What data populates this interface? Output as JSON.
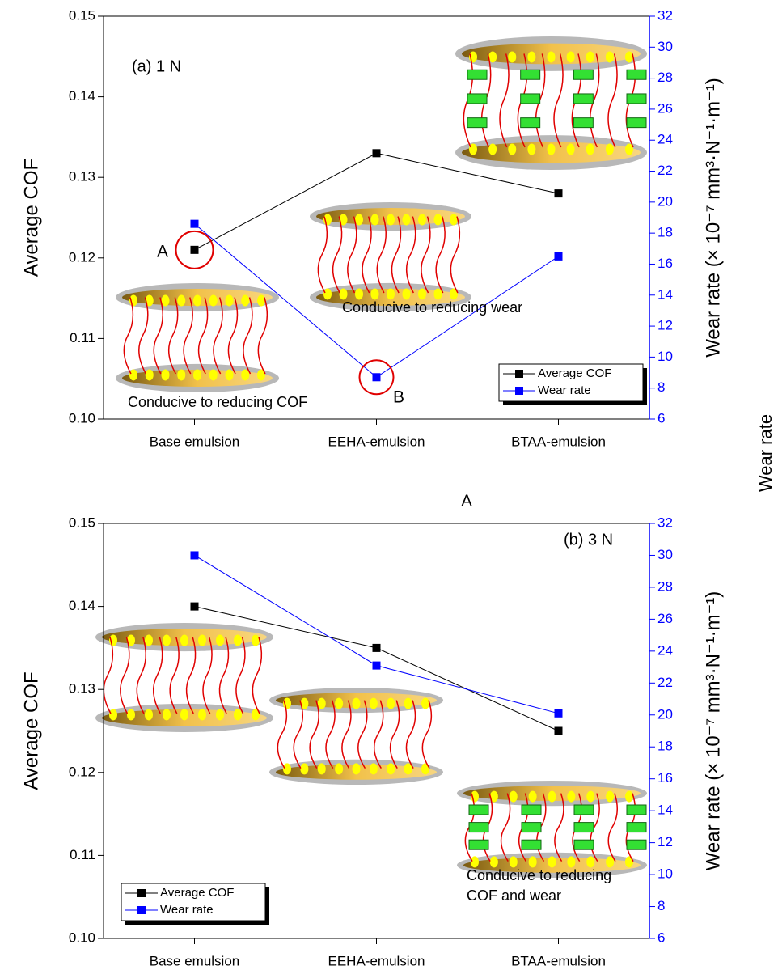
{
  "chart_data": [
    {
      "type": "line",
      "title": "(a) 1 N",
      "categories": [
        "Base emulsion",
        "EEHA-emulsion",
        "BTAA-emulsion"
      ],
      "series": [
        {
          "name": "Average COF",
          "color": "#000000",
          "values": [
            0.121,
            0.133,
            0.128
          ]
        },
        {
          "name": "Wear rate",
          "color": "#0000ff",
          "values": [
            18.6,
            8.7,
            16.5
          ],
          "axis": "y2"
        }
      ],
      "ylabel": "Average COF",
      "y2label": "Wear rate (× 10⁻⁷ mm³·N⁻¹·m⁻¹)",
      "ylim": [
        0.1,
        0.15
      ],
      "yticks": [
        {
          "value": 0.1,
          "label": "0.10"
        },
        0.11,
        0.12,
        0.13,
        0.14,
        0.15
      ],
      "y2lim": [
        6,
        32
      ],
      "y2ticks": [
        6,
        8,
        10,
        12,
        14,
        16,
        18,
        20,
        22,
        24,
        26,
        28,
        30,
        32
      ],
      "legend": "lower right",
      "annotations": [
        "A",
        "B",
        "Conducive to reducing COF",
        "Conducive to reducing wear"
      ]
    },
    {
      "type": "line",
      "title": "(b) 3 N",
      "categories": [
        "Base emulsion",
        "EEHA-emulsion",
        "BTAA-emulsion"
      ],
      "series": [
        {
          "name": "Average COF",
          "color": "#000000",
          "values": [
            0.14,
            0.135,
            0.125
          ]
        },
        {
          "name": "Wear rate",
          "color": "#0000ff",
          "values": [
            30.0,
            23.1,
            20.1
          ],
          "axis": "y2"
        }
      ],
      "ylabel": "Average COF",
      "y2label": "Wear rate (× 10⁻⁷ mm³·N⁻¹·m⁻¹)",
      "ylim": [
        0.1,
        0.15
      ],
      "yticks": [
        {
          "value": 0.1,
          "label": "0.10"
        },
        0.11,
        0.12,
        0.13,
        0.14,
        0.15
      ],
      "y2lim": [
        6,
        32
      ],
      "y2ticks": [
        6,
        8,
        10,
        12,
        14,
        16,
        18,
        20,
        22,
        24,
        26,
        28,
        30,
        32
      ],
      "legend": "lower left",
      "annotations": [
        "Conducive to reducing",
        "COF and wear"
      ]
    }
  ],
  "stray_labels": [
    "A",
    "Wear rate"
  ]
}
